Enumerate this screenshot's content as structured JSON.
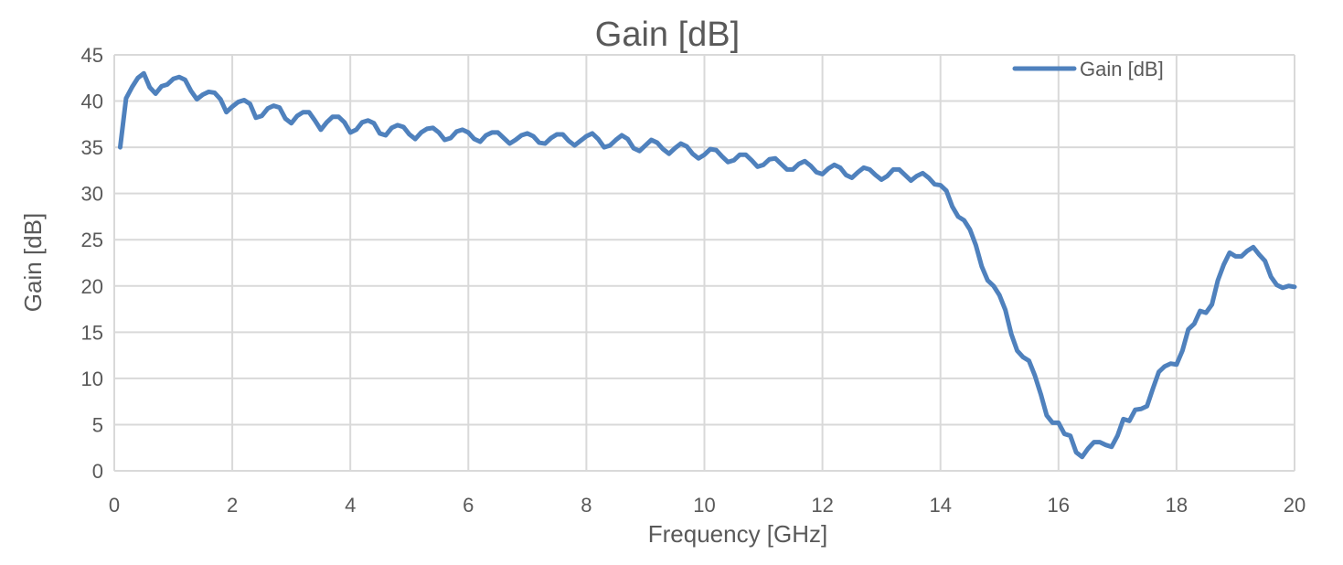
{
  "chart_data": {
    "type": "line",
    "title": "Gain [dB]",
    "xlabel": "Frequency [GHz]",
    "ylabel": "Gain [dB]",
    "xlim": [
      0,
      20
    ],
    "ylim": [
      0,
      45
    ],
    "x_ticks": [
      0,
      2,
      4,
      6,
      8,
      10,
      12,
      14,
      16,
      18,
      20
    ],
    "y_ticks": [
      0,
      5,
      10,
      15,
      20,
      25,
      30,
      35,
      40,
      45
    ],
    "grid": true,
    "legend_position": "top-right",
    "series": [
      {
        "name": "Gain [dB]",
        "color": "#4f81bd",
        "x": [
          0.1,
          0.2,
          0.3,
          0.4,
          0.5,
          0.6,
          0.7,
          0.8,
          0.9,
          1.0,
          1.1,
          1.2,
          1.3,
          1.4,
          1.5,
          1.6,
          1.7,
          1.8,
          1.9,
          2.0,
          2.1,
          2.2,
          2.3,
          2.4,
          2.5,
          2.6,
          2.7,
          2.8,
          2.9,
          3.0,
          3.1,
          3.2,
          3.3,
          3.4,
          3.5,
          3.6,
          3.7,
          3.8,
          3.9,
          4.0,
          4.1,
          4.2,
          4.3,
          4.4,
          4.5,
          4.6,
          4.7,
          4.8,
          4.9,
          5.0,
          5.1,
          5.2,
          5.3,
          5.4,
          5.5,
          5.6,
          5.7,
          5.8,
          5.9,
          6.0,
          6.1,
          6.2,
          6.3,
          6.4,
          6.5,
          6.6,
          6.7,
          6.8,
          6.9,
          7.0,
          7.1,
          7.2,
          7.3,
          7.4,
          7.5,
          7.6,
          7.7,
          7.8,
          7.9,
          8.0,
          8.1,
          8.2,
          8.3,
          8.4,
          8.5,
          8.6,
          8.7,
          8.8,
          8.9,
          9.0,
          9.1,
          9.2,
          9.3,
          9.4,
          9.5,
          9.6,
          9.7,
          9.8,
          9.9,
          10.0,
          10.1,
          10.2,
          10.3,
          10.4,
          10.5,
          10.6,
          10.7,
          10.8,
          10.9,
          11.0,
          11.1,
          11.2,
          11.3,
          11.4,
          11.5,
          11.6,
          11.7,
          11.8,
          11.9,
          12.0,
          12.1,
          12.2,
          12.3,
          12.4,
          12.5,
          12.6,
          12.7,
          12.8,
          12.9,
          13.0,
          13.1,
          13.2,
          13.3,
          13.4,
          13.5,
          13.6,
          13.7,
          13.8,
          13.9,
          14.0,
          14.1,
          14.2,
          14.3,
          14.4,
          14.5,
          14.6,
          14.7,
          14.8,
          14.9,
          15.0,
          15.1,
          15.2,
          15.3,
          15.4,
          15.5,
          15.6,
          15.7,
          15.8,
          15.9,
          16.0,
          16.1,
          16.2,
          16.3,
          16.4,
          16.5,
          16.6,
          16.7,
          16.8,
          16.9,
          17.0,
          17.1,
          17.2,
          17.3,
          17.4,
          17.5,
          17.6,
          17.7,
          17.8,
          17.9,
          18.0,
          18.1,
          18.2,
          18.3,
          18.4,
          18.5,
          18.6,
          18.7,
          18.8,
          18.9,
          19.0,
          19.1,
          19.2,
          19.3,
          19.4,
          19.5,
          19.6,
          19.7,
          19.8,
          19.9,
          20.0
        ],
        "values": [
          35.0,
          40.3,
          41.5,
          42.5,
          43.0,
          41.5,
          40.8,
          41.6,
          41.8,
          42.4,
          42.6,
          42.3,
          41.1,
          40.2,
          40.7,
          41.0,
          40.9,
          40.2,
          38.8,
          39.4,
          39.9,
          40.1,
          39.7,
          38.2,
          38.4,
          39.2,
          39.5,
          39.3,
          38.1,
          37.6,
          38.4,
          38.8,
          38.8,
          37.9,
          36.9,
          37.7,
          38.3,
          38.3,
          37.7,
          36.6,
          36.9,
          37.7,
          37.9,
          37.6,
          36.5,
          36.3,
          37.1,
          37.4,
          37.2,
          36.4,
          35.9,
          36.6,
          37.0,
          37.1,
          36.6,
          35.8,
          36.0,
          36.7,
          36.9,
          36.6,
          35.9,
          35.6,
          36.3,
          36.6,
          36.6,
          36.0,
          35.4,
          35.8,
          36.3,
          36.5,
          36.2,
          35.5,
          35.4,
          36.0,
          36.4,
          36.4,
          35.7,
          35.2,
          35.7,
          36.2,
          36.5,
          35.9,
          35.0,
          35.2,
          35.8,
          36.3,
          35.9,
          34.9,
          34.6,
          35.2,
          35.8,
          35.5,
          34.8,
          34.3,
          34.9,
          35.4,
          35.1,
          34.3,
          33.8,
          34.2,
          34.8,
          34.7,
          34.0,
          33.4,
          33.6,
          34.2,
          34.2,
          33.6,
          32.9,
          33.1,
          33.7,
          33.8,
          33.2,
          32.6,
          32.6,
          33.2,
          33.5,
          33.0,
          32.3,
          32.1,
          32.7,
          33.1,
          32.8,
          32.0,
          31.7,
          32.3,
          32.8,
          32.6,
          32.0,
          31.5,
          31.9,
          32.6,
          32.6,
          32.0,
          31.4,
          31.9,
          32.2,
          31.7,
          31.0,
          30.9,
          30.3,
          28.6,
          27.5,
          27.1,
          26.1,
          24.4,
          22.1,
          20.6,
          20.0,
          19.0,
          17.4,
          14.8,
          13.0,
          12.3,
          11.9,
          10.3,
          8.3,
          6.0,
          5.2,
          5.2,
          4.0,
          3.8,
          2.0,
          1.5,
          2.4,
          3.1,
          3.1,
          2.8,
          2.6,
          3.8,
          5.6,
          5.4,
          6.6,
          6.7,
          7.0,
          8.9,
          10.7,
          11.3,
          11.6,
          11.5,
          13.0,
          15.3,
          15.9,
          17.3,
          17.1,
          18.0,
          20.6,
          22.3,
          23.6,
          23.2,
          23.2,
          23.8,
          24.2,
          23.4,
          22.7,
          21.0,
          20.1,
          19.8,
          20.0,
          19.9
        ]
      }
    ]
  }
}
